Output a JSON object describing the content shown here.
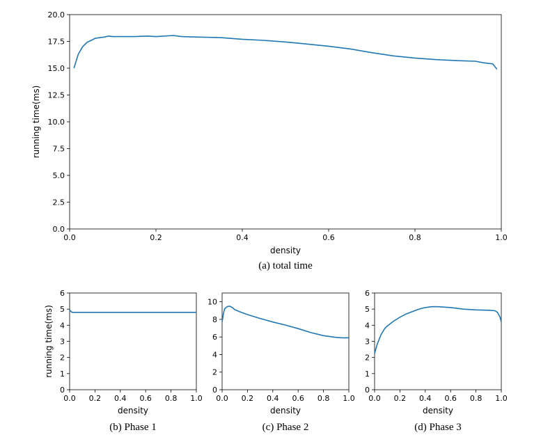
{
  "chart_data": [
    {
      "type": "line",
      "caption": "(a) total time",
      "xlabel": "density",
      "ylabel": "running time(ms)",
      "xlim": [
        0.0,
        1.0
      ],
      "ylim": [
        0.0,
        20.0
      ],
      "xticks": [
        "0.0",
        "0.2",
        "0.4",
        "0.6",
        "0.8",
        "1.0"
      ],
      "yticks": [
        "0.0",
        "2.5",
        "5.0",
        "7.5",
        "10.0",
        "12.5",
        "15.0",
        "17.5",
        "20.0"
      ],
      "color": "#1f77b4",
      "x": [
        0.01,
        0.02,
        0.03,
        0.04,
        0.05,
        0.06,
        0.07,
        0.08,
        0.09,
        0.1,
        0.12,
        0.15,
        0.18,
        0.2,
        0.22,
        0.24,
        0.26,
        0.3,
        0.35,
        0.4,
        0.45,
        0.5,
        0.55,
        0.6,
        0.65,
        0.7,
        0.75,
        0.8,
        0.85,
        0.9,
        0.94,
        0.96,
        0.98,
        0.99
      ],
      "y": [
        15.0,
        16.3,
        17.0,
        17.4,
        17.6,
        17.8,
        17.85,
        17.9,
        18.0,
        17.95,
        17.95,
        17.95,
        18.0,
        17.95,
        18.0,
        18.05,
        17.95,
        17.9,
        17.85,
        17.7,
        17.6,
        17.45,
        17.25,
        17.05,
        16.8,
        16.45,
        16.15,
        15.95,
        15.8,
        15.7,
        15.65,
        15.5,
        15.4,
        14.9
      ]
    },
    {
      "type": "line",
      "caption": "(b) Phase 1",
      "xlabel": "density",
      "ylabel": "running time(ms)",
      "xlim": [
        0.0,
        1.0
      ],
      "ylim": [
        0,
        6
      ],
      "xticks": [
        "0.0",
        "0.2",
        "0.4",
        "0.6",
        "0.8",
        "1.0"
      ],
      "yticks": [
        "0",
        "1",
        "2",
        "3",
        "4",
        "5",
        "6"
      ],
      "color": "#1f77b4",
      "x": [
        0.0,
        0.01,
        0.02,
        0.04,
        0.1,
        0.2,
        0.3,
        0.4,
        0.5,
        0.6,
        0.7,
        0.8,
        0.9,
        1.0
      ],
      "y": [
        4.95,
        4.85,
        4.8,
        4.8,
        4.8,
        4.8,
        4.8,
        4.8,
        4.8,
        4.8,
        4.8,
        4.8,
        4.8,
        4.8
      ]
    },
    {
      "type": "line",
      "caption": "(c) Phase 2",
      "xlabel": "density",
      "ylabel": "",
      "xlim": [
        0.0,
        1.0
      ],
      "ylim": [
        0,
        11
      ],
      "xticks": [
        "0.0",
        "0.2",
        "0.4",
        "0.6",
        "0.8",
        "1.0"
      ],
      "yticks": [
        "0",
        "2",
        "4",
        "6",
        "8",
        "10"
      ],
      "color": "#1f77b4",
      "x": [
        0.0,
        0.01,
        0.02,
        0.04,
        0.06,
        0.08,
        0.1,
        0.15,
        0.2,
        0.3,
        0.4,
        0.5,
        0.6,
        0.7,
        0.8,
        0.9,
        0.95,
        1.0
      ],
      "y": [
        7.7,
        8.6,
        9.2,
        9.45,
        9.5,
        9.35,
        9.1,
        8.8,
        8.55,
        8.1,
        7.7,
        7.35,
        6.95,
        6.5,
        6.15,
        5.95,
        5.9,
        5.9
      ]
    },
    {
      "type": "line",
      "caption": "(d) Phase 3",
      "xlabel": "density",
      "ylabel": "",
      "xlim": [
        0.0,
        1.0
      ],
      "ylim": [
        0,
        6
      ],
      "xticks": [
        "0.0",
        "0.2",
        "0.4",
        "0.6",
        "0.8",
        "1.0"
      ],
      "yticks": [
        "0",
        "1",
        "2",
        "3",
        "4",
        "5",
        "6"
      ],
      "color": "#1f77b4",
      "x": [
        0.0,
        0.02,
        0.05,
        0.08,
        0.1,
        0.15,
        0.2,
        0.25,
        0.3,
        0.35,
        0.4,
        0.45,
        0.5,
        0.6,
        0.7,
        0.8,
        0.9,
        0.95,
        0.97,
        0.99,
        1.0
      ],
      "y": [
        2.25,
        2.8,
        3.4,
        3.8,
        3.95,
        4.25,
        4.5,
        4.7,
        4.85,
        5.0,
        5.1,
        5.15,
        5.15,
        5.1,
        5.0,
        4.95,
        4.93,
        4.9,
        4.8,
        4.5,
        4.2
      ]
    }
  ]
}
